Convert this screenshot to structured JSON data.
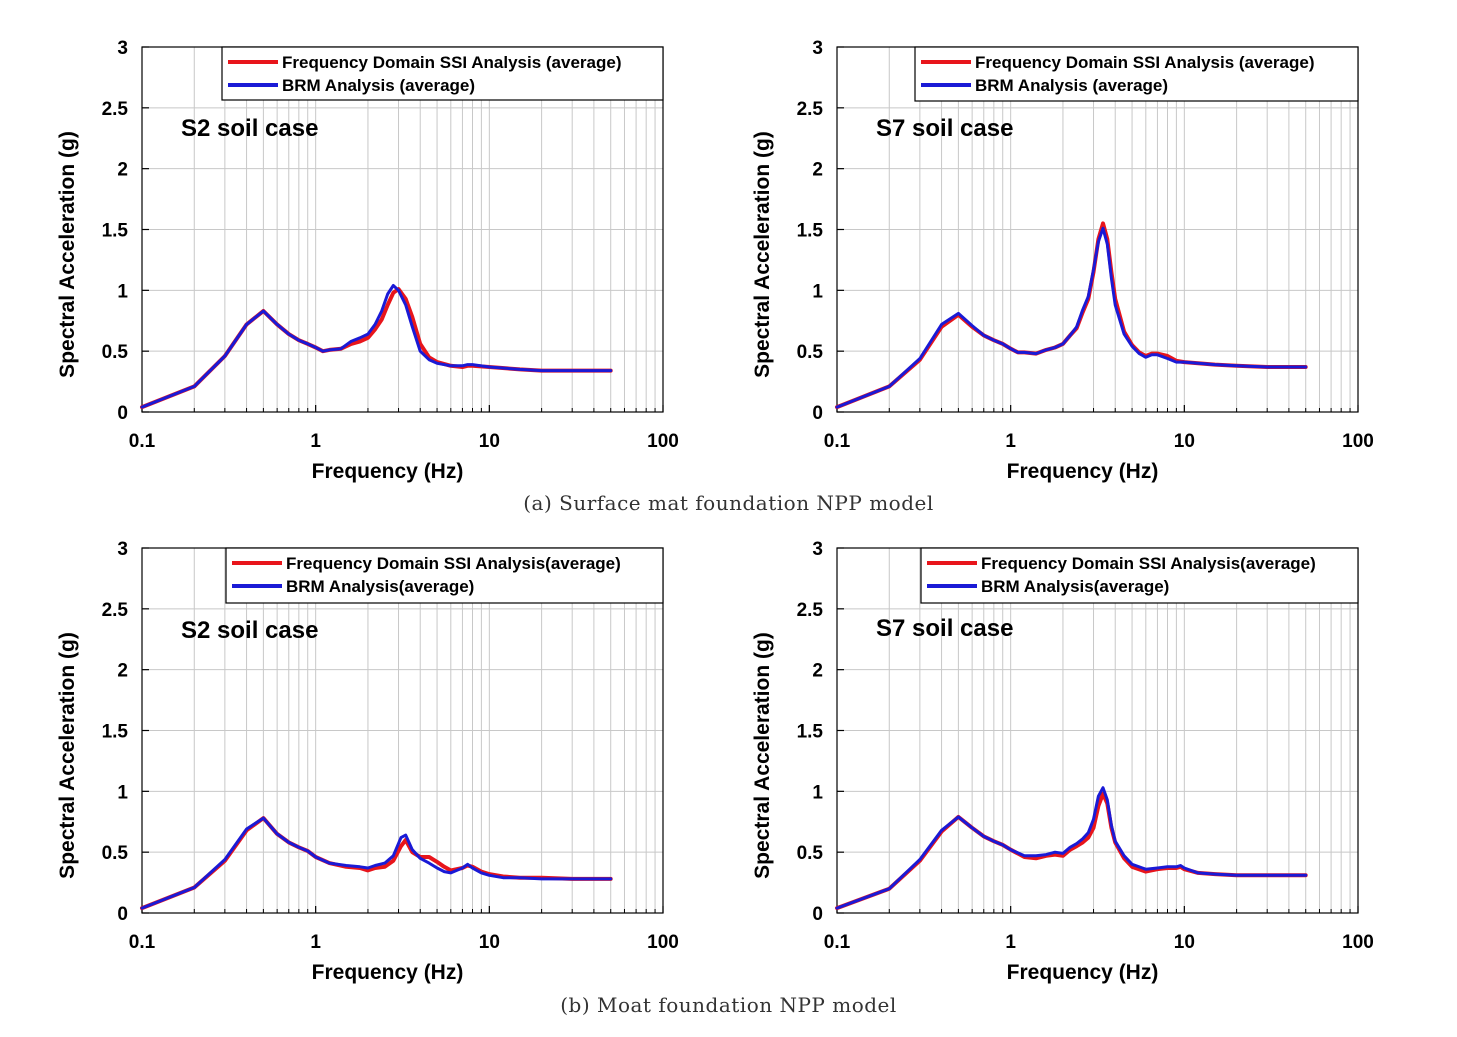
{
  "captions": {
    "top": "(a) Surface mat foundation NPP model",
    "bottom": "(b) Moat foundation NPP model"
  },
  "colors": {
    "fd_ssi": "#e8151b",
    "brm": "#1a1ad6",
    "grid": "#c8c8c8"
  },
  "chart_data": [
    {
      "type": "line",
      "panel": "top-left",
      "annotation": "S2 soil case",
      "xlabel": "Frequency (Hz)",
      "ylabel": "Spectral Acceleration (g)",
      "xscale": "log",
      "xlim": [
        0.1,
        100
      ],
      "ylim": [
        0,
        3
      ],
      "xticks": [
        "0.1",
        "1",
        "10",
        "100"
      ],
      "yticks": [
        "0",
        "0.5",
        "1",
        "1.5",
        "2",
        "2.5",
        "3"
      ],
      "grid": true,
      "legend_position": "top-right",
      "series": [
        {
          "name": "Frequency Domain SSI Analysis (average)",
          "x": [
            0.1,
            0.2,
            0.3,
            0.4,
            0.5,
            0.6,
            0.7,
            0.8,
            0.9,
            1.0,
            1.1,
            1.2,
            1.4,
            1.6,
            1.8,
            2.0,
            2.2,
            2.4,
            2.6,
            2.8,
            3.0,
            3.3,
            3.6,
            4.0,
            4.5,
            5.0,
            6.0,
            7.0,
            7.5,
            8.0,
            10,
            15,
            20,
            30,
            50
          ],
          "y": [
            0.04,
            0.21,
            0.46,
            0.72,
            0.83,
            0.72,
            0.64,
            0.59,
            0.56,
            0.53,
            0.5,
            0.51,
            0.52,
            0.56,
            0.58,
            0.61,
            0.68,
            0.76,
            0.88,
            0.98,
            1.01,
            0.93,
            0.78,
            0.56,
            0.45,
            0.41,
            0.38,
            0.37,
            0.38,
            0.38,
            0.37,
            0.35,
            0.34,
            0.34,
            0.34
          ]
        },
        {
          "name": "BRM Analysis (average)",
          "x": [
            0.1,
            0.2,
            0.3,
            0.4,
            0.5,
            0.6,
            0.7,
            0.8,
            0.9,
            1.0,
            1.1,
            1.2,
            1.4,
            1.6,
            1.8,
            2.0,
            2.2,
            2.4,
            2.6,
            2.8,
            3.0,
            3.3,
            3.6,
            4.0,
            4.5,
            5.0,
            6.0,
            7.0,
            7.5,
            8.0,
            10,
            15,
            20,
            30,
            50
          ],
          "y": [
            0.04,
            0.21,
            0.46,
            0.72,
            0.83,
            0.72,
            0.64,
            0.59,
            0.56,
            0.53,
            0.5,
            0.51,
            0.52,
            0.58,
            0.61,
            0.64,
            0.72,
            0.83,
            0.97,
            1.04,
            1.0,
            0.88,
            0.7,
            0.5,
            0.43,
            0.4,
            0.38,
            0.38,
            0.39,
            0.39,
            0.37,
            0.35,
            0.34,
            0.34,
            0.34
          ]
        }
      ]
    },
    {
      "type": "line",
      "panel": "top-right",
      "annotation": "S7 soil case",
      "xlabel": "Frequency (Hz)",
      "ylabel": "Spectral Acceleration (g)",
      "xscale": "log",
      "xlim": [
        0.1,
        100
      ],
      "ylim": [
        0,
        3
      ],
      "xticks": [
        "0.1",
        "1",
        "10",
        "100"
      ],
      "yticks": [
        "0",
        "0.5",
        "1",
        "1.5",
        "2",
        "2.5",
        "3"
      ],
      "grid": true,
      "legend_position": "top-right",
      "series": [
        {
          "name": "Frequency Domain SSI Analysis (average)",
          "x": [
            0.1,
            0.2,
            0.3,
            0.4,
            0.5,
            0.6,
            0.7,
            0.8,
            0.9,
            1.0,
            1.1,
            1.2,
            1.4,
            1.6,
            1.8,
            2.0,
            2.2,
            2.4,
            2.6,
            2.8,
            3.0,
            3.2,
            3.4,
            3.6,
            3.8,
            4.0,
            4.5,
            5.0,
            5.5,
            6.0,
            6.5,
            7.0,
            8.0,
            9.0,
            10,
            15,
            20,
            30,
            50
          ],
          "y": [
            0.04,
            0.21,
            0.43,
            0.7,
            0.8,
            0.7,
            0.63,
            0.59,
            0.56,
            0.52,
            0.49,
            0.49,
            0.48,
            0.51,
            0.53,
            0.56,
            0.63,
            0.69,
            0.82,
            0.93,
            1.15,
            1.42,
            1.55,
            1.42,
            1.15,
            0.93,
            0.66,
            0.55,
            0.49,
            0.46,
            0.48,
            0.48,
            0.46,
            0.42,
            0.41,
            0.39,
            0.38,
            0.37,
            0.37
          ]
        },
        {
          "name": "BRM Analysis (average)",
          "x": [
            0.1,
            0.2,
            0.3,
            0.4,
            0.5,
            0.6,
            0.7,
            0.8,
            0.9,
            1.0,
            1.1,
            1.2,
            1.4,
            1.6,
            1.8,
            2.0,
            2.2,
            2.4,
            2.6,
            2.8,
            3.0,
            3.2,
            3.4,
            3.6,
            3.8,
            4.0,
            4.5,
            5.0,
            5.5,
            6.0,
            6.5,
            7.0,
            8.0,
            9.0,
            10,
            15,
            20,
            30,
            50
          ],
          "y": [
            0.04,
            0.21,
            0.44,
            0.72,
            0.81,
            0.71,
            0.63,
            0.59,
            0.56,
            0.52,
            0.49,
            0.49,
            0.48,
            0.51,
            0.53,
            0.56,
            0.63,
            0.7,
            0.84,
            0.95,
            1.17,
            1.4,
            1.51,
            1.38,
            1.1,
            0.88,
            0.64,
            0.54,
            0.48,
            0.45,
            0.47,
            0.47,
            0.44,
            0.41,
            0.41,
            0.39,
            0.38,
            0.37,
            0.37
          ]
        }
      ]
    },
    {
      "type": "line",
      "panel": "bottom-left",
      "annotation": "S2 soil case",
      "xlabel": "Frequency (Hz)",
      "ylabel": "Spectral Acceleration (g)",
      "xscale": "log",
      "xlim": [
        0.1,
        100
      ],
      "ylim": [
        0,
        3
      ],
      "xticks": [
        "0.1",
        "1",
        "10",
        "100"
      ],
      "yticks": [
        "0",
        "0.5",
        "1",
        "1.5",
        "2",
        "2.5",
        "3"
      ],
      "grid": true,
      "legend_position": "top-right",
      "series": [
        {
          "name": "Frequency Domain SSI Analysis(average)",
          "x": [
            0.1,
            0.2,
            0.3,
            0.4,
            0.5,
            0.6,
            0.7,
            0.8,
            0.9,
            1.0,
            1.2,
            1.5,
            1.8,
            2.0,
            2.2,
            2.5,
            2.8,
            3.1,
            3.3,
            3.6,
            4.0,
            4.5,
            5.0,
            5.5,
            6.0,
            7.0,
            7.5,
            8.0,
            9.0,
            10,
            12,
            15,
            20,
            30,
            50
          ],
          "y": [
            0.04,
            0.21,
            0.43,
            0.68,
            0.78,
            0.65,
            0.58,
            0.54,
            0.51,
            0.46,
            0.41,
            0.38,
            0.37,
            0.35,
            0.37,
            0.38,
            0.43,
            0.55,
            0.6,
            0.5,
            0.46,
            0.46,
            0.42,
            0.38,
            0.35,
            0.37,
            0.39,
            0.38,
            0.34,
            0.32,
            0.3,
            0.29,
            0.29,
            0.28,
            0.28
          ]
        },
        {
          "name": "BRM Analysis(average)",
          "x": [
            0.1,
            0.2,
            0.3,
            0.4,
            0.5,
            0.6,
            0.7,
            0.8,
            0.9,
            1.0,
            1.2,
            1.5,
            1.8,
            2.0,
            2.2,
            2.5,
            2.8,
            3.1,
            3.3,
            3.6,
            4.0,
            4.5,
            5.0,
            5.5,
            6.0,
            7.0,
            7.5,
            8.0,
            9.0,
            10,
            12,
            15,
            20,
            30,
            50
          ],
          "y": [
            0.04,
            0.21,
            0.44,
            0.69,
            0.78,
            0.65,
            0.58,
            0.54,
            0.51,
            0.46,
            0.41,
            0.39,
            0.38,
            0.37,
            0.39,
            0.41,
            0.47,
            0.62,
            0.64,
            0.52,
            0.45,
            0.41,
            0.37,
            0.34,
            0.33,
            0.37,
            0.4,
            0.37,
            0.33,
            0.31,
            0.29,
            0.29,
            0.28,
            0.28,
            0.28
          ]
        }
      ]
    },
    {
      "type": "line",
      "panel": "bottom-right",
      "annotation": "S7 soil case",
      "xlabel": "Frequency (Hz)",
      "ylabel": "Spectral Acceleration (g)",
      "xscale": "log",
      "xlim": [
        0.1,
        100
      ],
      "ylim": [
        0,
        3
      ],
      "xticks": [
        "0.1",
        "1",
        "10",
        "100"
      ],
      "yticks": [
        "0",
        "0.5",
        "1",
        "1.5",
        "2",
        "2.5",
        "3"
      ],
      "grid": true,
      "legend_position": "top-right",
      "series": [
        {
          "name": "Frequency Domain SSI Analysis(average)",
          "x": [
            0.1,
            0.2,
            0.3,
            0.4,
            0.5,
            0.6,
            0.7,
            0.8,
            0.9,
            1.0,
            1.2,
            1.4,
            1.6,
            1.8,
            2.0,
            2.2,
            2.4,
            2.6,
            2.8,
            3.0,
            3.2,
            3.4,
            3.6,
            3.8,
            4.0,
            4.5,
            5.0,
            6.0,
            7.0,
            8.0,
            9.0,
            9.5,
            10,
            12,
            15,
            20,
            30,
            50
          ],
          "y": [
            0.04,
            0.2,
            0.43,
            0.67,
            0.79,
            0.7,
            0.63,
            0.59,
            0.56,
            0.52,
            0.46,
            0.45,
            0.47,
            0.48,
            0.47,
            0.52,
            0.55,
            0.58,
            0.62,
            0.7,
            0.88,
            0.98,
            0.9,
            0.7,
            0.58,
            0.45,
            0.38,
            0.34,
            0.36,
            0.37,
            0.37,
            0.38,
            0.36,
            0.33,
            0.32,
            0.31,
            0.31,
            0.31
          ]
        },
        {
          "name": "BRM Analysis(average)",
          "x": [
            0.1,
            0.2,
            0.3,
            0.4,
            0.5,
            0.6,
            0.7,
            0.8,
            0.9,
            1.0,
            1.2,
            1.4,
            1.6,
            1.8,
            2.0,
            2.2,
            2.4,
            2.6,
            2.8,
            3.0,
            3.2,
            3.4,
            3.6,
            3.8,
            4.0,
            4.5,
            5.0,
            6.0,
            7.0,
            8.0,
            9.0,
            9.5,
            10,
            12,
            15,
            20,
            30,
            50
          ],
          "y": [
            0.04,
            0.2,
            0.44,
            0.68,
            0.79,
            0.7,
            0.63,
            0.59,
            0.56,
            0.52,
            0.47,
            0.47,
            0.48,
            0.5,
            0.49,
            0.54,
            0.57,
            0.61,
            0.66,
            0.77,
            0.96,
            1.03,
            0.93,
            0.72,
            0.59,
            0.47,
            0.4,
            0.36,
            0.37,
            0.38,
            0.38,
            0.39,
            0.37,
            0.33,
            0.32,
            0.31,
            0.31,
            0.31
          ]
        }
      ]
    }
  ]
}
